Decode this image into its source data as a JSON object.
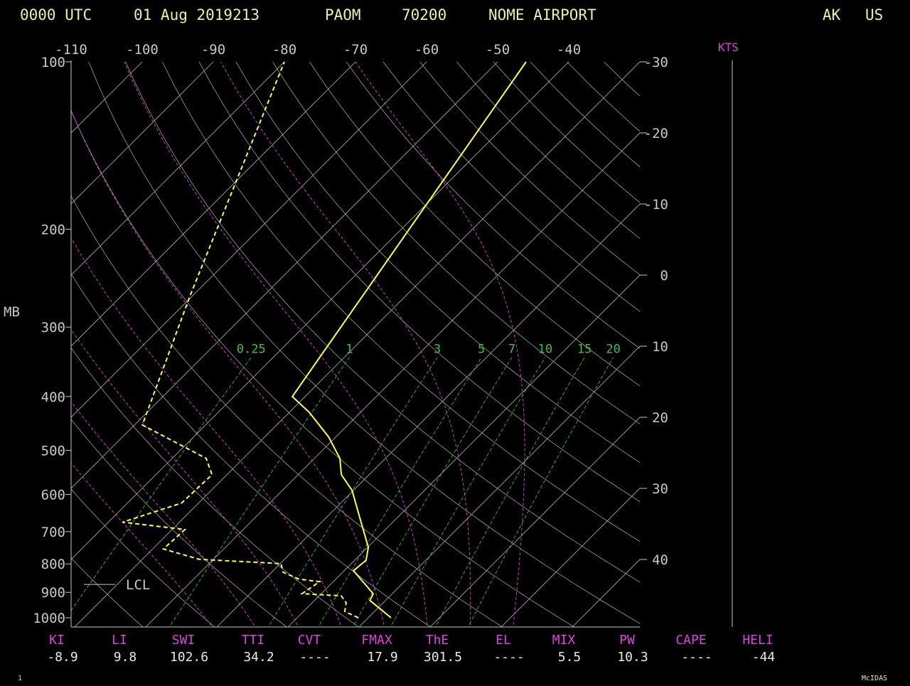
{
  "chart_data": {
    "type": "skew-t",
    "header": {
      "time": "0000 UTC",
      "date": "01 Aug 2019213",
      "station": "PAOM",
      "station_number": "70200",
      "station_name": "NOME AIRPORT",
      "state": "AK",
      "country": "US"
    },
    "y_label": "MB",
    "wind_label": "KTS",
    "ylim": [
      100,
      1040
    ],
    "yticks": [
      100,
      200,
      300,
      400,
      500,
      600,
      700,
      800,
      900,
      1000
    ],
    "log_y": true,
    "xticks": [
      -110,
      -100,
      -90,
      -80,
      -70,
      -60,
      -50,
      -40
    ],
    "isotherm_ticks": [
      -30,
      -20,
      -10,
      0,
      10,
      20,
      30,
      40
    ],
    "mixing_ratio_lines": [
      0.25,
      1,
      3,
      5,
      7,
      10,
      15,
      20
    ],
    "lcl": {
      "label": "LCL",
      "pressure": 871
    },
    "profiles": [
      {
        "color": "#ffff40",
        "dashed": false,
        "pressure": [
          1000,
          931,
          905,
          823,
          788,
          747,
          674,
          590,
          553,
          517,
          473,
          427,
          400,
          100
        ],
        "values": [
          13.2,
          7.8,
          7.3,
          1.3,
          1.6,
          0.1,
          -4.4,
          -10.2,
          -13.9,
          -16.4,
          -21,
          -27.2,
          -31.8,
          -46
        ]
      },
      {
        "color": "#ffff40",
        "dashed": true,
        "pressure": [
          1000,
          974,
          940,
          913,
          905,
          861,
          852,
          828,
          799,
          785,
          752,
          694,
          673,
          622,
          553,
          517,
          450,
          263,
          100
        ],
        "values": [
          8.6,
          5.8,
          4.8,
          3.1,
          -2.7,
          -1.9,
          -5.2,
          -8.4,
          -9.9,
          -22,
          -28.5,
          -28.2,
          -38,
          -32.4,
          -32.1,
          -35.2,
          -48.9,
          -60.4,
          -80
        ]
      }
    ],
    "indices": {
      "labels": [
        "KI",
        "LI",
        "SWI",
        "TTI",
        "CVT",
        "FMAX",
        "ThE",
        "EL",
        "MIX",
        "PW",
        "CAPE",
        "HELI"
      ],
      "values": [
        -8.9,
        9.8,
        102.6,
        34.2,
        "----",
        17.9,
        301.5,
        "----",
        5.5,
        10.3,
        "----",
        -44
      ]
    },
    "footer_left": "1",
    "footer_right": "McIDAS"
  }
}
